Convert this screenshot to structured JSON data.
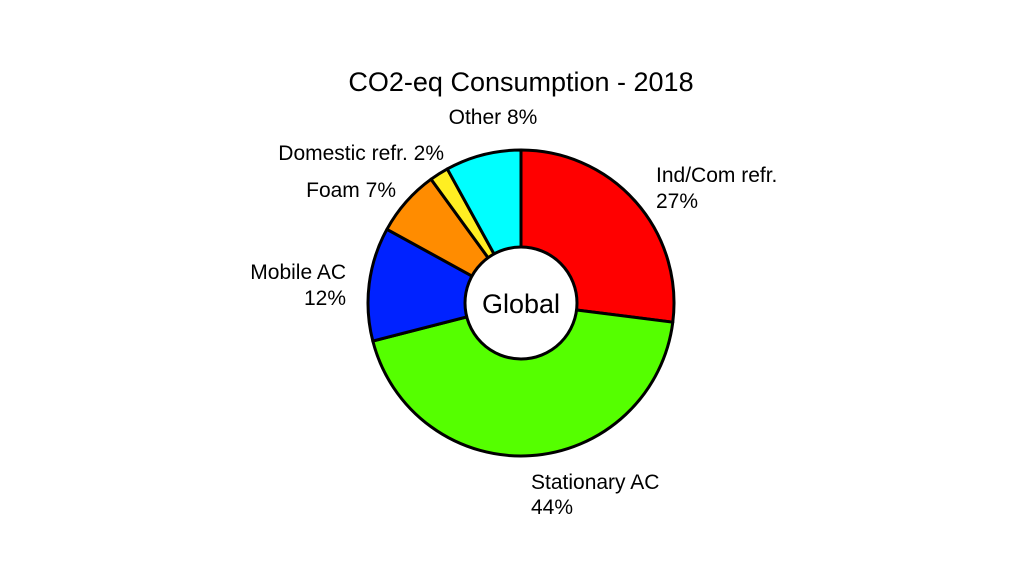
{
  "chart_data": {
    "type": "pie",
    "title": "CO2-eq Consumption - 2018",
    "center_label": "Global",
    "start_angle_deg": 90,
    "direction": "clockwise",
    "slices": [
      {
        "name": "Ind/Com refr.",
        "label": "Ind/Com refr.",
        "percent_text": "27%",
        "value": 27,
        "color": "#ff0000"
      },
      {
        "name": "Stationary AC",
        "label": "Stationary AC",
        "percent_text": "44%",
        "value": 44,
        "color": "#55ff00"
      },
      {
        "name": "Mobile AC",
        "label": "Mobile AC",
        "percent_text": "12%",
        "value": 12,
        "color": "#0022ff"
      },
      {
        "name": "Foam",
        "label": "Foam 7%",
        "percent_text": "",
        "value": 7,
        "color": "#ff8c00"
      },
      {
        "name": "Domestic refr.",
        "label": "Domestic refr. 2%",
        "percent_text": "",
        "value": 2,
        "color": "#ffee22"
      },
      {
        "name": "Other",
        "label": "Other 8%",
        "percent_text": "",
        "value": 8,
        "color": "#00ffff"
      }
    ]
  }
}
